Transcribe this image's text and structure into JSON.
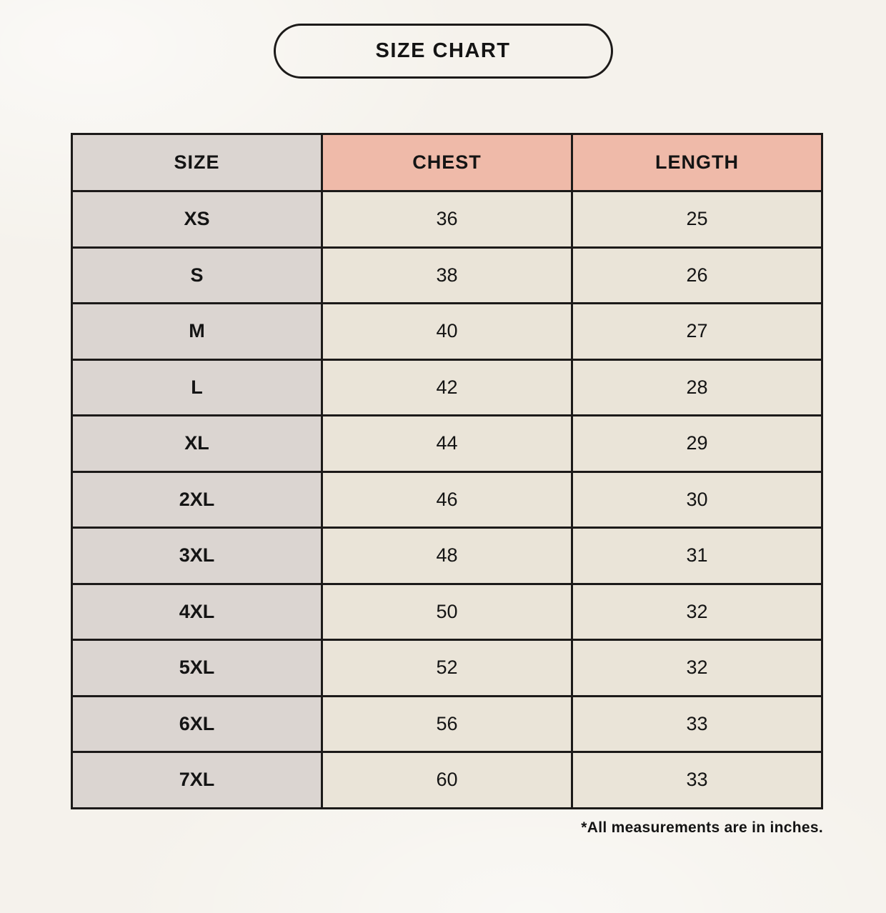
{
  "page": {
    "title": "SIZE CHART",
    "footnote": "*All measurements are in inches."
  },
  "table": {
    "columns": [
      "SIZE",
      "CHEST",
      "LENGTH"
    ],
    "rows": [
      {
        "size": "XS",
        "chest": "36",
        "length": "25"
      },
      {
        "size": "S",
        "chest": "38",
        "length": "26"
      },
      {
        "size": "M",
        "chest": "40",
        "length": "27"
      },
      {
        "size": "L",
        "chest": "42",
        "length": "28"
      },
      {
        "size": "XL",
        "chest": "44",
        "length": "29"
      },
      {
        "size": "2XL",
        "chest": "46",
        "length": "30"
      },
      {
        "size": "3XL",
        "chest": "48",
        "length": "31"
      },
      {
        "size": "4XL",
        "chest": "50",
        "length": "32"
      },
      {
        "size": "5XL",
        "chest": "52",
        "length": "32"
      },
      {
        "size": "6XL",
        "chest": "56",
        "length": "33"
      },
      {
        "size": "7XL",
        "chest": "60",
        "length": "33"
      }
    ]
  },
  "colors": {
    "background": "#f5f2ec",
    "header_accent": "#efbaa9",
    "size_column": "#dbd5d1",
    "cell": "#eae4d8",
    "border": "#1c1a19",
    "text": "#141414"
  }
}
